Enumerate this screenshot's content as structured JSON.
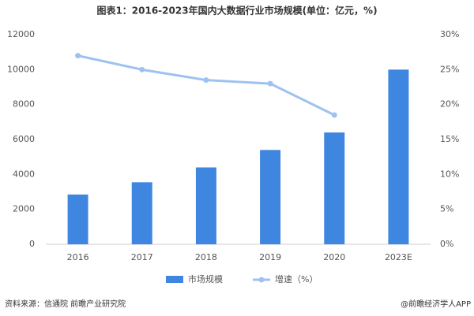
{
  "chart_data": {
    "type": "bar",
    "title": "图表1：2016-2023年国内大数据行业市场规模(单位：亿元，%)",
    "categories": [
      "2016",
      "2017",
      "2018",
      "2019",
      "2020",
      "2023E"
    ],
    "series": [
      {
        "name": "市场规模",
        "type": "bar",
        "color": "#3f86e0",
        "values": [
          2850,
          3550,
          4400,
          5400,
          6400,
          10000
        ]
      },
      {
        "name": "增速（%）",
        "type": "line",
        "axis": "y2",
        "color": "#9ec2f0",
        "values": [
          27,
          25,
          23.5,
          23,
          18.5,
          null
        ]
      }
    ],
    "ylim": [
      0,
      12000
    ],
    "yticks": [
      0,
      2000,
      4000,
      6000,
      8000,
      10000,
      12000
    ],
    "y2lim": [
      0,
      30
    ],
    "y2ticks": [
      {
        "value": 0,
        "label": "0%"
      },
      {
        "value": 5,
        "label": "5%"
      },
      {
        "value": 10,
        "label": "10%"
      },
      {
        "value": 15,
        "label": "15%"
      },
      {
        "value": 20,
        "label": "20%"
      },
      {
        "value": 25,
        "label": "25%"
      },
      {
        "value": 30,
        "label": "30%"
      }
    ],
    "grid": false,
    "legend": "bottom"
  },
  "footer": {
    "source": "资料来源：信通院 前瞻产业研究院",
    "credit": "@前瞻经济学人APP"
  }
}
